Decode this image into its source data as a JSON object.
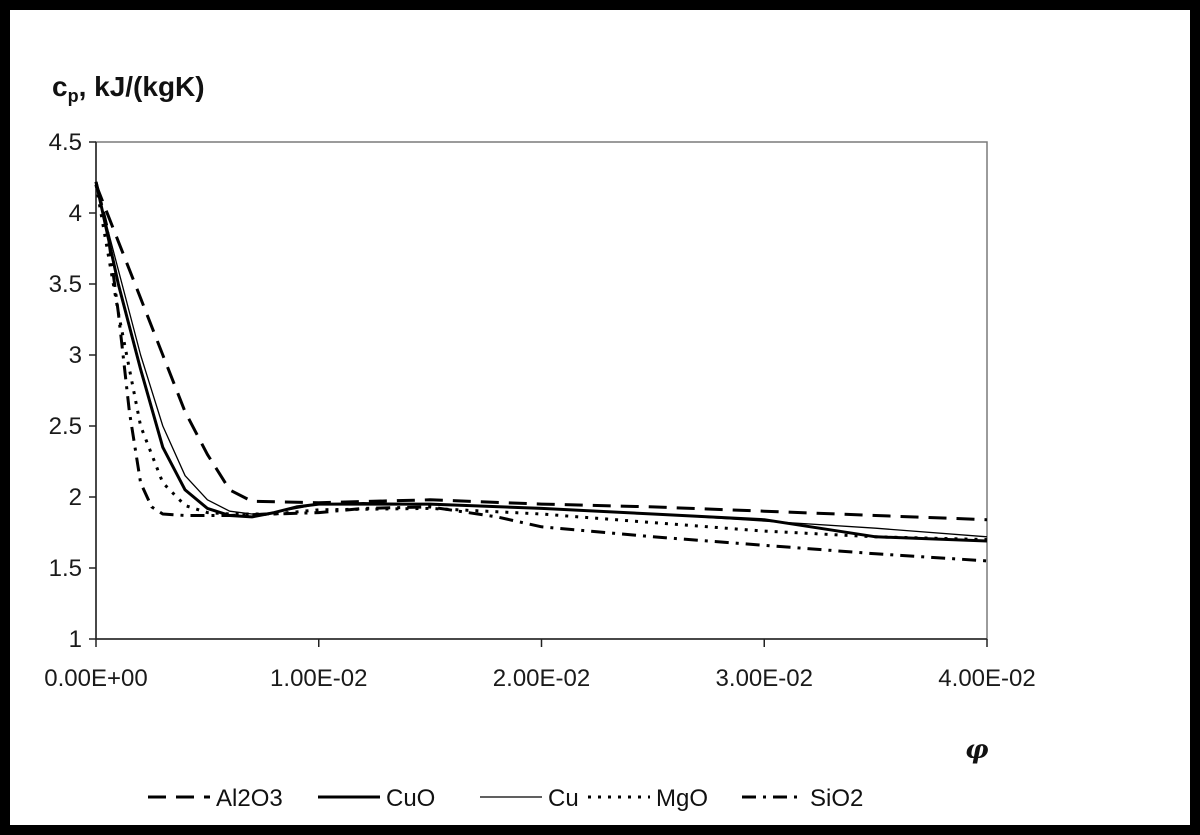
{
  "chart_data": {
    "type": "line",
    "ylabel_main": "c",
    "ylabel_sub": "p",
    "ylabel_rest": ", kJ/(kgK)",
    "xlabel": "φ",
    "xlim": [
      0,
      0.04
    ],
    "ylim": [
      1,
      4.5
    ],
    "xticks": [
      0,
      0.01,
      0.02,
      0.03,
      0.04
    ],
    "xtick_labels": [
      "0.00E+00",
      "1.00E-02",
      "2.00E-02",
      "3.00E-02",
      "4.00E-02"
    ],
    "yticks": [
      1,
      1.5,
      2,
      2.5,
      3,
      3.5,
      4,
      4.5
    ],
    "ytick_labels": [
      "1",
      "1.5",
      "2",
      "2.5",
      "3",
      "3.5",
      "4",
      "4.5"
    ],
    "grid": false,
    "legend_position": "bottom",
    "series": [
      {
        "name": "Al2O3",
        "style": "longdash",
        "width": 3,
        "points": [
          [
            0,
            4.2
          ],
          [
            0.001,
            3.8
          ],
          [
            0.002,
            3.4
          ],
          [
            0.003,
            3.0
          ],
          [
            0.004,
            2.6
          ],
          [
            0.005,
            2.3
          ],
          [
            0.006,
            2.05
          ],
          [
            0.007,
            1.97
          ],
          [
            0.01,
            1.96
          ],
          [
            0.015,
            1.98
          ],
          [
            0.02,
            1.95
          ],
          [
            0.025,
            1.93
          ],
          [
            0.03,
            1.9
          ],
          [
            0.035,
            1.87
          ],
          [
            0.04,
            1.84
          ]
        ]
      },
      {
        "name": "CuO",
        "style": "solid",
        "width": 3,
        "points": [
          [
            0,
            4.22
          ],
          [
            0.001,
            3.5
          ],
          [
            0.002,
            2.9
          ],
          [
            0.003,
            2.35
          ],
          [
            0.004,
            2.05
          ],
          [
            0.005,
            1.92
          ],
          [
            0.006,
            1.87
          ],
          [
            0.007,
            1.86
          ],
          [
            0.008,
            1.89
          ],
          [
            0.009,
            1.93
          ],
          [
            0.01,
            1.95
          ],
          [
            0.012,
            1.95
          ],
          [
            0.015,
            1.95
          ],
          [
            0.02,
            1.92
          ],
          [
            0.025,
            1.88
          ],
          [
            0.03,
            1.84
          ],
          [
            0.035,
            1.72
          ],
          [
            0.04,
            1.69
          ]
        ]
      },
      {
        "name": "Cu",
        "style": "solid",
        "width": 1.3,
        "points": [
          [
            0,
            4.2
          ],
          [
            0.001,
            3.6
          ],
          [
            0.002,
            3.0
          ],
          [
            0.003,
            2.5
          ],
          [
            0.004,
            2.15
          ],
          [
            0.005,
            1.98
          ],
          [
            0.006,
            1.9
          ],
          [
            0.007,
            1.88
          ],
          [
            0.008,
            1.89
          ],
          [
            0.009,
            1.92
          ],
          [
            0.01,
            1.95
          ],
          [
            0.012,
            1.96
          ],
          [
            0.015,
            1.95
          ],
          [
            0.02,
            1.92
          ],
          [
            0.025,
            1.88
          ],
          [
            0.03,
            1.83
          ],
          [
            0.035,
            1.78
          ],
          [
            0.04,
            1.72
          ]
        ]
      },
      {
        "name": "MgO",
        "style": "dotted",
        "width": 3,
        "points": [
          [
            0,
            4.2
          ],
          [
            0.001,
            3.3
          ],
          [
            0.002,
            2.5
          ],
          [
            0.003,
            2.1
          ],
          [
            0.004,
            1.94
          ],
          [
            0.005,
            1.89
          ],
          [
            0.006,
            1.88
          ],
          [
            0.008,
            1.88
          ],
          [
            0.01,
            1.91
          ],
          [
            0.015,
            1.92
          ],
          [
            0.02,
            1.88
          ],
          [
            0.025,
            1.82
          ],
          [
            0.03,
            1.76
          ],
          [
            0.035,
            1.72
          ],
          [
            0.04,
            1.7
          ]
        ]
      },
      {
        "name": "SiO2",
        "style": "dashdot",
        "width": 3,
        "points": [
          [
            0,
            4.22
          ],
          [
            0.0005,
            3.9
          ],
          [
            0.001,
            3.3
          ],
          [
            0.0015,
            2.6
          ],
          [
            0.002,
            2.1
          ],
          [
            0.0025,
            1.93
          ],
          [
            0.003,
            1.88
          ],
          [
            0.004,
            1.87
          ],
          [
            0.006,
            1.87
          ],
          [
            0.008,
            1.88
          ],
          [
            0.01,
            1.89
          ],
          [
            0.012,
            1.92
          ],
          [
            0.015,
            1.93
          ],
          [
            0.018,
            1.86
          ],
          [
            0.02,
            1.79
          ],
          [
            0.025,
            1.72
          ],
          [
            0.03,
            1.66
          ],
          [
            0.035,
            1.6
          ],
          [
            0.04,
            1.55
          ]
        ]
      }
    ]
  }
}
